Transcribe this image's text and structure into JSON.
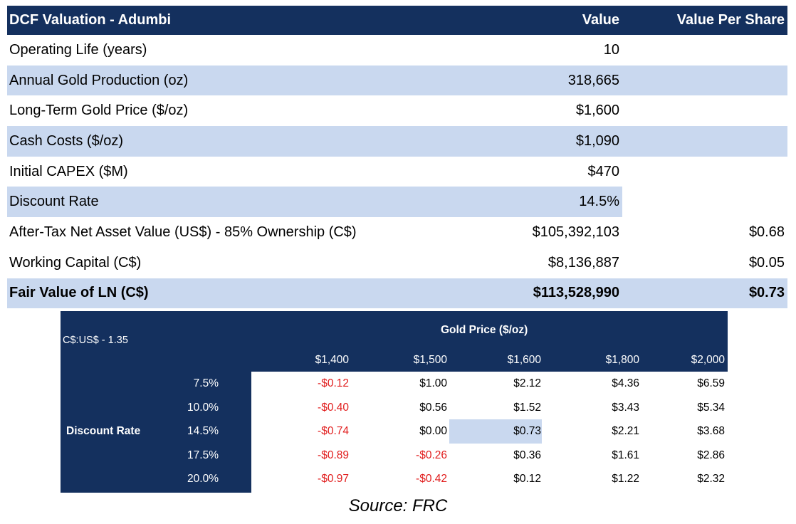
{
  "dcf": {
    "title": "DCF Valuation - Adumbi",
    "col_value": "Value",
    "col_vps": "Value Per Share",
    "rows": [
      {
        "label": "Operating Life (years)",
        "value": "10",
        "vps": ""
      },
      {
        "label": "Annual Gold Production (oz)",
        "value": "318,665",
        "vps": ""
      },
      {
        "label": "Long-Term Gold Price ($/oz)",
        "value": "$1,600",
        "vps": ""
      },
      {
        "label": "Cash Costs ($/oz)",
        "value": "$1,090",
        "vps": ""
      },
      {
        "label": "Initial CAPEX ($M)",
        "value": "$470",
        "vps": ""
      },
      {
        "label": "Discount Rate",
        "value": "14.5%",
        "vps": ""
      },
      {
        "label": "After-Tax Net Asset Value (US$)  - 85% Ownership (C$)",
        "value": "$105,392,103",
        "vps": "$0.68"
      },
      {
        "label": "Working Capital (C$)",
        "value": "$8,136,887",
        "vps": "$0.05"
      },
      {
        "label": "Fair Value of LN (C$)",
        "value": "$113,528,990",
        "vps": "$0.73"
      }
    ]
  },
  "sensitivity": {
    "fx_label": "C$:US$ - 1.35",
    "col_header": "Gold Price ($/oz)",
    "row_header": "Discount Rate",
    "prices": [
      "$1,400",
      "$1,500",
      "$1,600",
      "$1,800",
      "$2,000"
    ],
    "rates": [
      "7.5%",
      "10.0%",
      "14.5%",
      "17.5%",
      "20.0%"
    ],
    "cells": [
      [
        "-$0.12",
        "$1.00",
        "$2.12",
        "$4.36",
        "$6.59"
      ],
      [
        "-$0.40",
        "$0.56",
        "$1.52",
        "$3.43",
        "$5.34"
      ],
      [
        "-$0.74",
        "$0.00",
        "$0.73",
        "$2.21",
        "$3.68"
      ],
      [
        "-$0.89",
        "-$0.26",
        "$0.36",
        "$1.61",
        "$2.86"
      ],
      [
        "-$0.97",
        "-$0.42",
        "$0.12",
        "$1.22",
        "$2.32"
      ]
    ],
    "highlight_color": "#c9d8ef",
    "negative_color": "#e11d1d"
  },
  "source": "Source: FRC"
}
